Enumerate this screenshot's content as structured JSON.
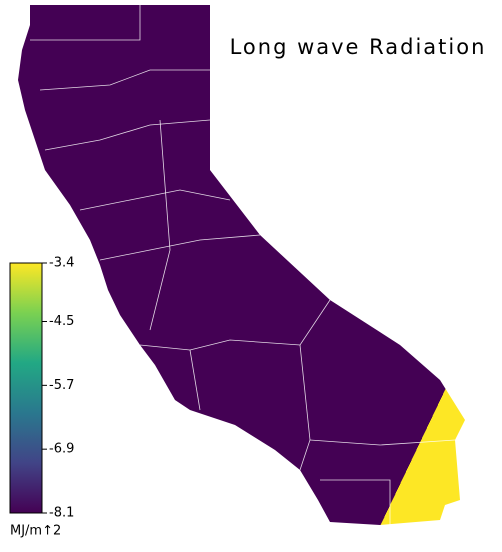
{
  "title": "Long wave Radiation",
  "colorbar": {
    "label": "MJ/m↑2",
    "lim": [
      -8.1,
      -3.4
    ],
    "ticks": [
      -3.4,
      -4.5,
      -5.7,
      -6.9,
      -8.1
    ],
    "colors": [
      "#440154",
      "#414487",
      "#2a788e",
      "#22a884",
      "#7ad151",
      "#fde725"
    ]
  }
}
